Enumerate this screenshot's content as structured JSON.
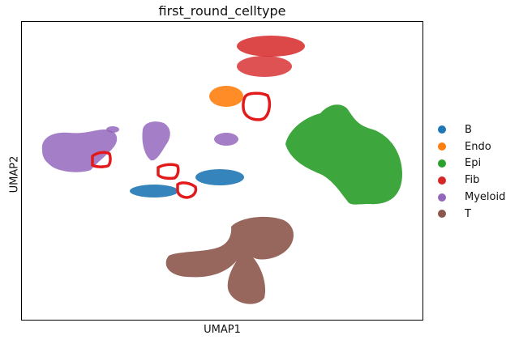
{
  "chart_data": {
    "type": "scatter",
    "title": "first_round_celltype",
    "xlabel": "UMAP1",
    "ylabel": "UMAP2",
    "x_ticks": [],
    "y_ticks": [],
    "legend": {
      "placement": "right"
    },
    "series": [
      {
        "name": "B",
        "color": "#1f77b4"
      },
      {
        "name": "Endo",
        "color": "#ff7f0e"
      },
      {
        "name": "Epi",
        "color": "#2ca02c"
      },
      {
        "name": "Fib",
        "color": "#d62728"
      },
      {
        "name": "Myeloid",
        "color": "#9467bd"
      },
      {
        "name": "T",
        "color": "#8c564b"
      }
    ],
    "annotations": {
      "type": "outlined regions",
      "count": 4,
      "color": "#e31a1c"
    }
  }
}
